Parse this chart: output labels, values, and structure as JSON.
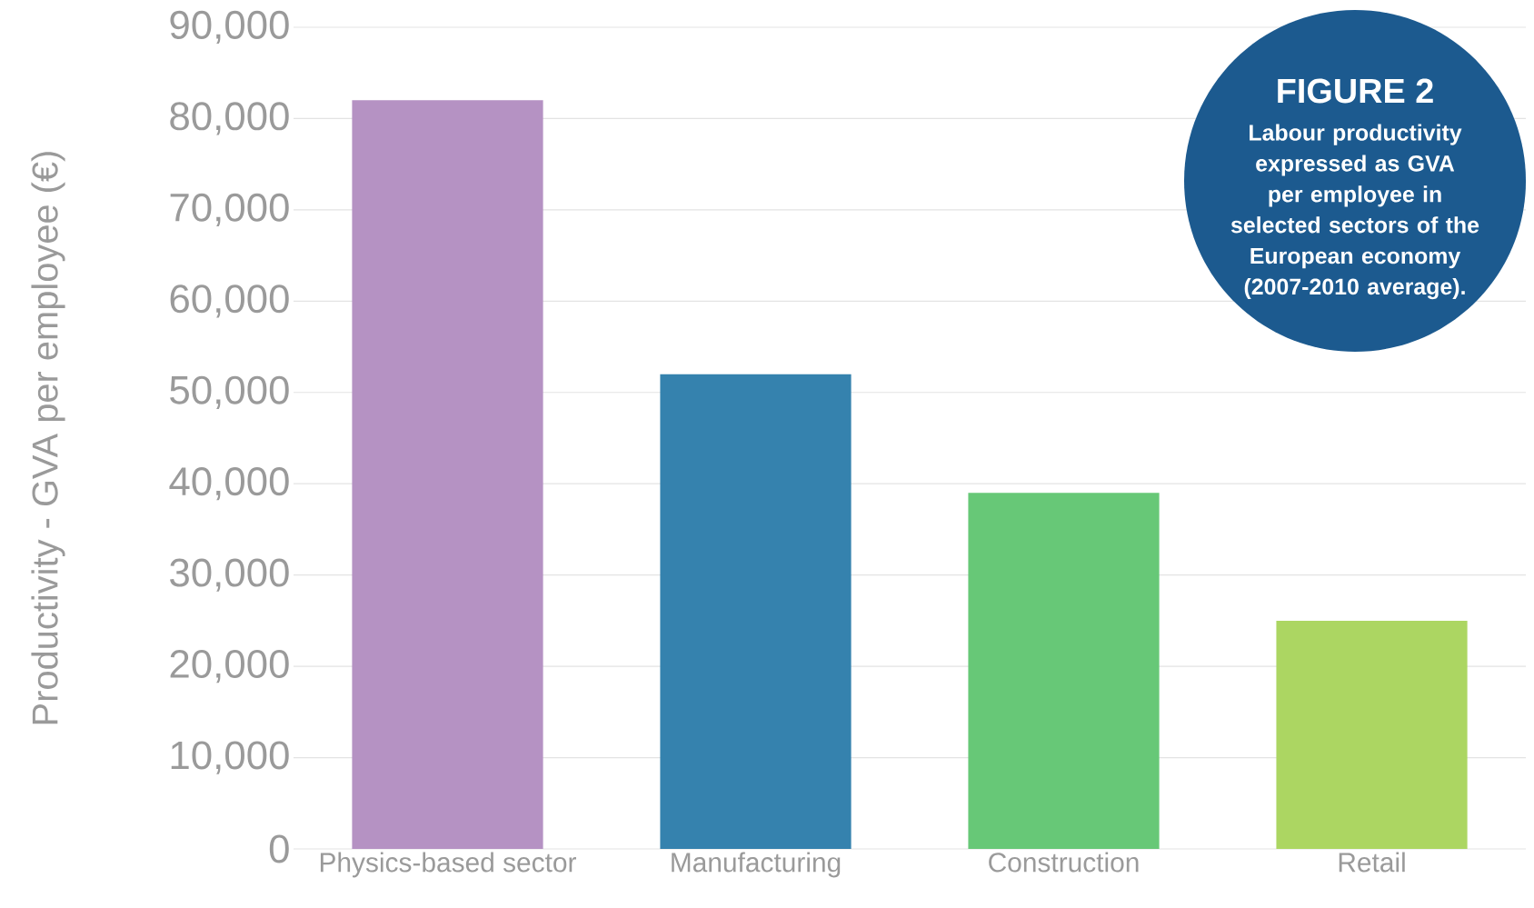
{
  "chart_data": {
    "type": "bar",
    "title": "FIGURE 2",
    "subtitle": "Labour productivity expressed as GVA per employee in selected sectors of the European economy (2007-2010 average).",
    "ylabel": "Productivity - GVA per employee (€)",
    "categories": [
      "Physics-based sector",
      "Manufacturing",
      "Construction",
      "Retail"
    ],
    "values": [
      82000,
      52000,
      39000,
      25000
    ],
    "colors": [
      "#b592c3",
      "#3582ae",
      "#67c877",
      "#acd662"
    ],
    "ylim": [
      0,
      90000
    ],
    "yticks": [
      0,
      {
        "value": 10000,
        "label": "10,000"
      },
      {
        "value": 20000,
        "label": "20,000"
      },
      {
        "value": 30000,
        "label": "30,000"
      },
      {
        "value": 40000,
        "label": "40,000"
      },
      {
        "value": 50000,
        "label": "50,000"
      },
      {
        "value": 60000,
        "label": "60,000"
      },
      {
        "value": 70000,
        "label": "70,000"
      },
      {
        "value": 80000,
        "label": "80,000"
      },
      {
        "value": 90000,
        "label": "90,000"
      }
    ],
    "grid": "y"
  }
}
